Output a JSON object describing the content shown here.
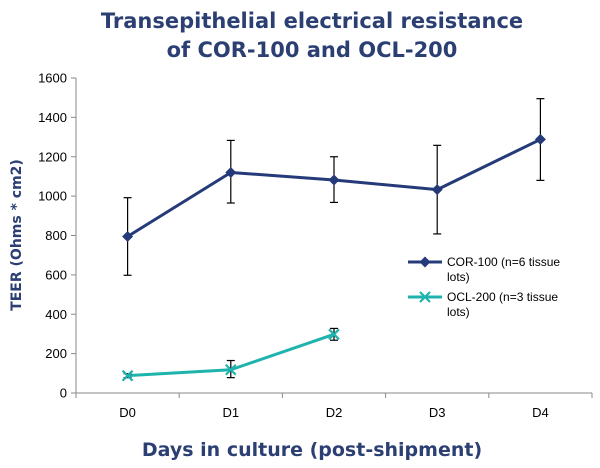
{
  "chart_data": {
    "type": "line",
    "title_lines": [
      "Transepithelial electrical resistance",
      "of COR-100 and OCL-200"
    ],
    "xlabel": "Days in culture (post-shipment)",
    "ylabel": "TEER (Ohms * cm2)",
    "categories": [
      "D0",
      "D1",
      "D2",
      "D3",
      "D4"
    ],
    "ylim": [
      0,
      1600
    ],
    "yticks": [
      "0",
      "200",
      "400",
      "600",
      "800",
      "1000",
      "1200",
      "1400",
      "1600"
    ],
    "grid": false,
    "legend_position": "right",
    "series": [
      {
        "name_lines": [
          "COR-100 (n=6 tissue",
          "lots)"
        ],
        "color": "#253a78",
        "marker": "diamond",
        "values": [
          795,
          1120,
          1082,
          1033,
          1288
        ],
        "error_low": [
          598,
          965,
          968,
          808,
          1080
        ],
        "error_high": [
          992,
          1283,
          1200,
          1258,
          1495
        ]
      },
      {
        "name_lines": [
          "OCL-200 (n=3 tissue",
          "lots)"
        ],
        "color": "#1fb3ad",
        "marker": "x",
        "values": [
          88,
          118,
          298,
          null,
          null
        ],
        "error_low": [
          78,
          78,
          268,
          null,
          null
        ],
        "error_high": [
          98,
          165,
          328,
          null,
          null
        ]
      }
    ]
  }
}
